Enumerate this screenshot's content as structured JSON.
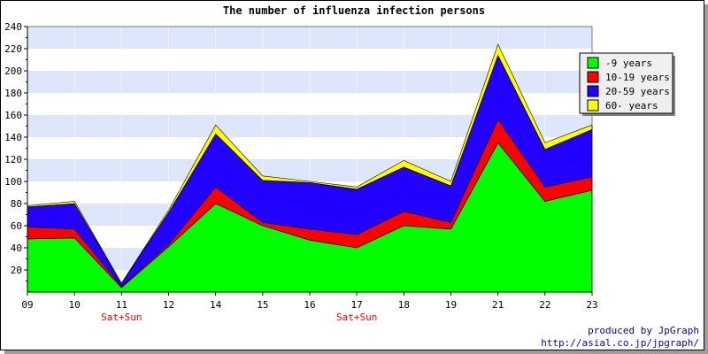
{
  "chart_data": {
    "type": "area",
    "stacked": true,
    "title": "The number of influenza infection persons",
    "categories": [
      "09",
      "10",
      "11",
      "12",
      "14",
      "15",
      "16",
      "17",
      "18",
      "19",
      "21",
      "22",
      "23"
    ],
    "ylim": [
      0,
      240
    ],
    "yticks": [
      20,
      40,
      60,
      80,
      100,
      120,
      140,
      160,
      180,
      200,
      220,
      240
    ],
    "grid": true,
    "grid_band_colors": [
      "#ffffff",
      "#dde6fb"
    ],
    "legend_position": "top-right",
    "series": [
      {
        "name": "-9 years",
        "color": "#00ff00",
        "values": [
          48,
          49,
          4,
          41,
          80,
          60,
          47,
          40,
          60,
          57,
          135,
          82,
          92
        ]
      },
      {
        "name": "10-19 years",
        "color": "#ff0000",
        "values": [
          11,
          8,
          1,
          2,
          15,
          3,
          10,
          12,
          13,
          6,
          21,
          13,
          12
        ]
      },
      {
        "name": "20-59 years",
        "color": "#2200ff",
        "values": [
          18,
          23,
          3,
          29,
          48,
          38,
          42,
          41,
          40,
          33,
          58,
          34,
          43
        ]
      },
      {
        "name": "60- years",
        "color": "#ffff00",
        "values": [
          1,
          2,
          0,
          2,
          8,
          4,
          1,
          2,
          6,
          4,
          10,
          6,
          4
        ]
      }
    ],
    "annotations": [
      {
        "category": "11",
        "text": "Sat+Sun",
        "color": "#ff0000"
      },
      {
        "category": "17",
        "text": "Sat+Sun",
        "color": "#ff0000"
      }
    ]
  },
  "footer": {
    "line1": "produced by JpGraph",
    "line2": "http://asial.co.jp/jpgraph/",
    "color": "#0000cc"
  }
}
